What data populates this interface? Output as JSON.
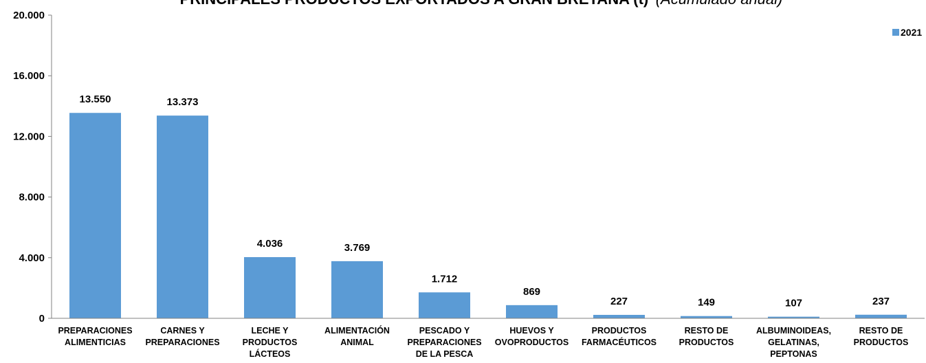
{
  "chart_data": {
    "type": "bar",
    "title": "PRINCIPALES PRODUCTOS EXPORTADOS A GRAN BRETAÑA (t)",
    "subtitle": "(Acumulado anual)",
    "categories": [
      [
        "PREPARACIONES",
        "ALIMENTICIAS"
      ],
      [
        "CARNES Y",
        "PREPARACIONES"
      ],
      [
        "LECHE Y",
        "PRODUCTOS",
        "LÁCTEOS"
      ],
      [
        "ALIMENTACIÓN",
        "ANIMAL"
      ],
      [
        "PESCADO Y",
        "PREPARACIONES",
        "DE LA PESCA"
      ],
      [
        "HUEVOS Y",
        "OVOPRODUCTOS"
      ],
      [
        "PRODUCTOS",
        "FARMACÉUTICOS"
      ],
      [
        "RESTO DE",
        "PRODUCTOS"
      ],
      [
        "ALBUMINOIDEAS,",
        "GELATINAS,",
        "PEPTONAS"
      ],
      [
        "RESTO DE",
        "PRODUCTOS"
      ]
    ],
    "series": [
      {
        "name": "2021",
        "color": "#5b9bd5",
        "values": [
          13550,
          13373,
          4036,
          3769,
          1712,
          869,
          227,
          149,
          107,
          237
        ],
        "data_labels": [
          "13.550",
          "13.373",
          "4.036",
          "3.769",
          "1.712",
          "869",
          "227",
          "149",
          "107",
          "237"
        ]
      }
    ],
    "ylim": [
      0,
      20000
    ],
    "yticks": [
      0,
      4000,
      8000,
      12000,
      16000,
      20000
    ],
    "ytick_labels": [
      "0",
      "4.000",
      "8.000",
      "12.000",
      "16.000",
      "20.000"
    ],
    "xlabel": "",
    "ylabel": "",
    "grid": false,
    "legend_position": "top-right"
  }
}
